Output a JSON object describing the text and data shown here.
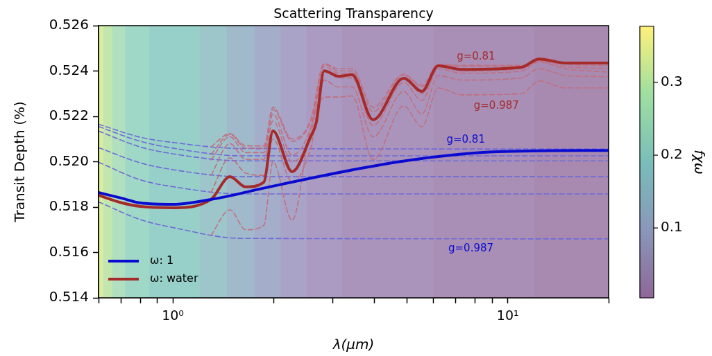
{
  "chart_data": {
    "type": "line",
    "title": "Scattering Transparency",
    "xlabel": "λ(μm)",
    "ylabel": "Transit Depth (%)",
    "clabel": "fχω",
    "log": "x",
    "grid": false,
    "legend": "bottom left",
    "xlim": [
      0.6,
      20
    ],
    "ylim": [
      0.514,
      0.526
    ],
    "xticks": [
      {
        "value": 0.6,
        "label": null
      },
      {
        "value": 0.7,
        "label": null
      },
      {
        "value": 0.8,
        "label": null
      },
      {
        "value": 0.9,
        "label": null
      },
      {
        "value": 1,
        "label": "10⁰"
      },
      {
        "value": 2,
        "label": null
      },
      {
        "value": 3,
        "label": null
      },
      {
        "value": 4,
        "label": null
      },
      {
        "value": 5,
        "label": null
      },
      {
        "value": 6,
        "label": null
      },
      {
        "value": 7,
        "label": null
      },
      {
        "value": 8,
        "label": null
      },
      {
        "value": 9,
        "label": null
      },
      {
        "value": 10,
        "label": "10¹"
      },
      {
        "value": 20,
        "label": null
      }
    ],
    "yticks": [
      {
        "value": 0.514,
        "label": "0.514"
      },
      {
        "value": 0.516,
        "label": "0.516"
      },
      {
        "value": 0.518,
        "label": "0.518"
      },
      {
        "value": 0.52,
        "label": "0.520"
      },
      {
        "value": 0.522,
        "label": "0.522"
      },
      {
        "value": 0.524,
        "label": "0.524"
      },
      {
        "value": 0.526,
        "label": "0.526"
      }
    ],
    "clim": [
      0.004,
      0.377
    ],
    "cticks": [
      0.1,
      0.2,
      0.3
    ],
    "bands": [
      {
        "axis": "x",
        "from": 0.6,
        "to": 0.62,
        "color": "#d8eda0"
      },
      {
        "axis": "x",
        "from": 0.62,
        "to": 0.66,
        "color": "#c3e6ae"
      },
      {
        "axis": "x",
        "from": 0.66,
        "to": 0.72,
        "color": "#b0e0bf"
      },
      {
        "axis": "x",
        "from": 0.72,
        "to": 0.85,
        "color": "#9fd8c6"
      },
      {
        "axis": "x",
        "from": 0.85,
        "to": 1.2,
        "color": "#97d0c8"
      },
      {
        "axis": "x",
        "from": 1.2,
        "to": 1.45,
        "color": "#9cc6ca"
      },
      {
        "axis": "x",
        "from": 1.45,
        "to": 1.75,
        "color": "#a0bacb"
      },
      {
        "axis": "x",
        "from": 1.75,
        "to": 2.1,
        "color": "#a4aecb"
      },
      {
        "axis": "x",
        "from": 2.1,
        "to": 2.5,
        "color": "#a8a3c7"
      },
      {
        "axis": "x",
        "from": 2.5,
        "to": 3.2,
        "color": "#ab9ac1"
      },
      {
        "axis": "x",
        "from": 3.2,
        "to": 6,
        "color": "#aa94bc"
      },
      {
        "axis": "x",
        "from": 6,
        "to": 12,
        "color": "#a98eb6"
      },
      {
        "axis": "x",
        "from": 12,
        "to": 20,
        "color": "#a88ab1"
      }
    ],
    "annotations": [
      "g=0.81",
      "g=0.987",
      "g=0.81",
      "g=0.987"
    ],
    "series": [
      {
        "name": "ω: 1",
        "color": "#0a0ad0",
        "line_style": "solid",
        "x": [
          0.6,
          0.7,
          0.8,
          1.0,
          1.34,
          1.94,
          3.64,
          5.33,
          9.3,
          20
        ],
        "values": [
          0.51864,
          0.5184,
          0.51818,
          0.51812,
          0.51837,
          0.51889,
          0.51971,
          0.52011,
          0.52044,
          0.5205
        ]
      },
      {
        "name": "ω: water",
        "color": "#a52a2a",
        "line_style": "solid",
        "x": [
          0.6,
          0.7,
          0.8,
          1.0,
          1.3,
          1.48,
          1.65,
          1.87,
          1.99,
          2.27,
          2.58,
          2.68,
          2.83,
          3.12,
          3.43,
          3.96,
          4.89,
          5.54,
          6.2,
          7.3,
          11,
          12.4,
          14.9,
          20
        ],
        "values": [
          0.51852,
          0.5182,
          0.51803,
          0.51797,
          0.51834,
          0.51934,
          0.51889,
          0.5191,
          0.52136,
          0.51956,
          0.52111,
          0.52172,
          0.52401,
          0.52377,
          0.52383,
          0.52185,
          0.52368,
          0.5231,
          0.52423,
          0.52407,
          0.52417,
          0.52453,
          0.52435,
          0.52435
        ]
      },
      {
        "color": "#c07080",
        "line_style": "dashed",
        "x": [
          1.3,
          1.48,
          1.65,
          1.87,
          1.99,
          2.27,
          2.58,
          2.83,
          3.12,
          3.43,
          3.96,
          4.89,
          5.54,
          6.2,
          7.3,
          11,
          12.4,
          14.9,
          20
        ],
        "values": [
          0.52066,
          0.52124,
          0.5207,
          0.5207,
          0.5224,
          0.521,
          0.52185,
          0.52432,
          0.5241,
          0.5241,
          0.5224,
          0.52386,
          0.52337,
          0.52429,
          0.52425,
          0.52425,
          0.52458,
          0.52438,
          0.5243
        ]
      },
      {
        "color": "#c07080",
        "line_style": "dashed",
        "x": [
          1.3,
          1.48,
          1.65,
          1.87,
          1.99,
          2.27,
          2.58,
          2.83,
          3.12,
          3.43,
          3.96,
          4.89,
          5.54,
          6.2,
          7.3,
          11,
          12.4,
          14.9,
          20
        ],
        "values": [
          0.52032,
          0.5212,
          0.5206,
          0.5206,
          0.5223,
          0.5209,
          0.5218,
          0.5243,
          0.524,
          0.524,
          0.5222,
          0.5238,
          0.5233,
          0.52427,
          0.5242,
          0.5242,
          0.5245,
          0.5243,
          0.52423
        ]
      },
      {
        "color": "#c07080",
        "line_style": "dashed",
        "x": [
          1.3,
          1.48,
          1.65,
          1.87,
          1.99,
          2.27,
          2.58,
          2.83,
          3.12,
          3.43,
          3.96,
          4.89,
          5.54,
          6.2,
          7.3,
          11,
          12.4,
          14.9,
          20
        ],
        "values": [
          0.52008,
          0.5211,
          0.5204,
          0.5204,
          0.5221,
          0.5203,
          0.5215,
          0.5242,
          0.5239,
          0.5239,
          0.5219,
          0.5237,
          0.523,
          0.5242,
          0.524,
          0.5241,
          0.52445,
          0.5242,
          0.5241
        ]
      },
      {
        "color": "#c07080",
        "line_style": "dashed",
        "x": [
          1.3,
          1.48,
          1.65,
          1.87,
          1.99,
          2.27,
          2.58,
          2.83,
          3.12,
          3.43,
          3.96,
          4.89,
          5.54,
          6.2,
          7.3,
          11,
          12.4,
          14.9,
          20
        ],
        "values": [
          0.5194,
          0.5208,
          0.5201,
          0.5201,
          0.5218,
          0.52,
          0.5212,
          0.524,
          0.5237,
          0.5237,
          0.5216,
          0.5235,
          0.5227,
          0.5241,
          0.5239,
          0.524,
          0.5244,
          0.5241,
          0.52395
        ]
      },
      {
        "color": "#c07080",
        "line_style": "dashed",
        "x": [
          1.3,
          1.48,
          1.65,
          1.87,
          1.99,
          2.27,
          2.58,
          2.83,
          3.12,
          3.43,
          3.96,
          4.89,
          5.54,
          6.2,
          7.3,
          11,
          12.4,
          14.9,
          20
        ],
        "values": [
          0.51864,
          0.52017,
          0.5195,
          0.5194,
          0.521,
          0.5191,
          0.5206,
          0.5236,
          0.5233,
          0.5233,
          0.5211,
          0.5231,
          0.5221,
          0.5238,
          0.5236,
          0.5237,
          0.5241,
          0.5238,
          0.52375
        ]
      },
      {
        "color": "#c07080",
        "line_style": "dashed",
        "x": [
          1.3,
          1.48,
          1.65,
          1.87,
          1.99,
          2.27,
          2.58,
          2.83,
          3.12,
          3.43,
          3.96,
          4.89,
          5.54,
          6.2,
          7.3,
          11,
          12.4,
          14.9,
          20
        ],
        "values": [
          0.51675,
          0.51788,
          0.517,
          0.5172,
          0.52,
          0.51742,
          0.5215,
          0.52285,
          0.52285,
          0.5229,
          0.5201,
          0.52246,
          0.52154,
          0.52325,
          0.52295,
          0.523,
          0.52356,
          0.52325,
          0.52325
        ]
      },
      {
        "color": "#6f6ad8",
        "line_style": "dashed",
        "x": [
          0.6,
          0.8,
          1.0,
          1.6,
          20
        ],
        "values": [
          0.52165,
          0.52108,
          0.52085,
          0.52058,
          0.52056
        ]
      },
      {
        "color": "#6f6ad8",
        "line_style": "dashed",
        "x": [
          0.6,
          0.8,
          1.0,
          1.6,
          20
        ],
        "values": [
          0.52155,
          0.5209,
          0.5206,
          0.52026,
          0.52026
        ]
      },
      {
        "color": "#6f6ad8",
        "line_style": "dashed",
        "x": [
          0.6,
          0.8,
          1.0,
          1.6,
          20
        ],
        "values": [
          0.52135,
          0.52065,
          0.52035,
          0.52004,
          0.52004
        ]
      },
      {
        "color": "#6f6ad8",
        "line_style": "dashed",
        "x": [
          0.6,
          0.8,
          1.0,
          1.6,
          20
        ],
        "values": [
          0.52062,
          0.51995,
          0.51965,
          0.51934,
          0.51934
        ]
      },
      {
        "color": "#6f6ad8",
        "line_style": "dashed",
        "x": [
          0.6,
          0.8,
          1.0,
          1.6,
          20
        ],
        "values": [
          0.51998,
          0.5192,
          0.5189,
          0.51858,
          0.51858
        ]
      },
      {
        "color": "#6f6ad8",
        "line_style": "dashed",
        "x": [
          0.6,
          0.8,
          1.0,
          1.6,
          20
        ],
        "values": [
          0.51823,
          0.51745,
          0.5171,
          0.51662,
          0.5166
        ]
      }
    ]
  }
}
